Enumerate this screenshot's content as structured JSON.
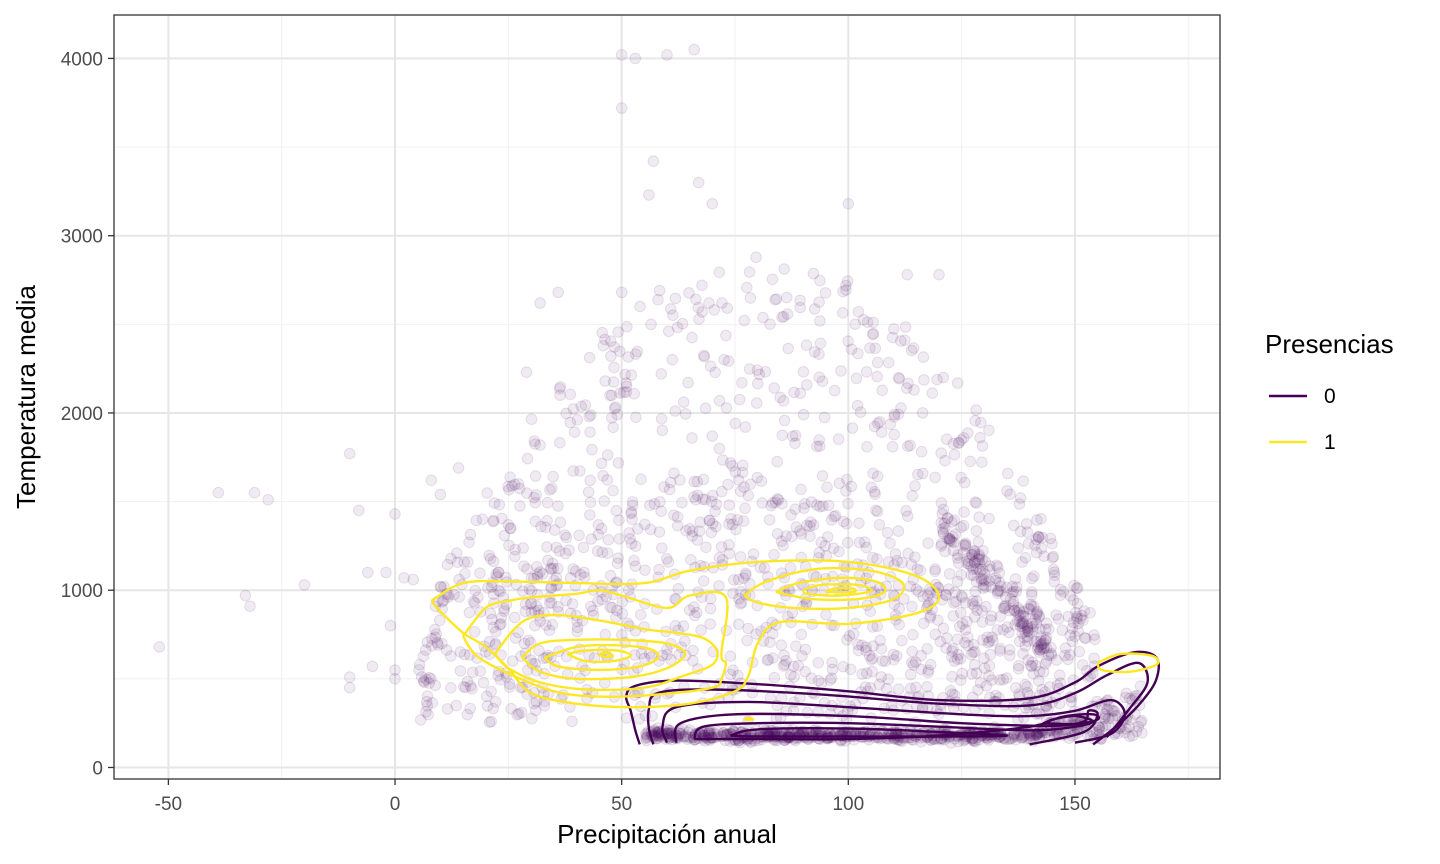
{
  "chart_data": {
    "type": "scatter",
    "xlabel": "Precipitación anual",
    "ylabel": "Temperatura media",
    "xlim": [
      -62,
      182
    ],
    "ylim": [
      -65,
      4245
    ],
    "x_ticks": [
      -50,
      0,
      50,
      100,
      150
    ],
    "y_ticks": [
      0,
      1000,
      2000,
      3000,
      4000
    ],
    "grid": true,
    "legend": {
      "title": "Presencias",
      "position": "right",
      "entries": [
        {
          "label": "0",
          "color": "#440154"
        },
        {
          "label": "1",
          "color": "#FDE725"
        }
      ]
    },
    "series": [
      {
        "name": "0",
        "color": "#440154",
        "point_opacity": 0.08,
        "points_outliers": [
          [
            -39,
            1550
          ],
          [
            -31,
            1550
          ],
          [
            -28,
            1510
          ],
          [
            -20,
            1030
          ],
          [
            -52,
            680
          ],
          [
            -33,
            970
          ],
          [
            -32,
            910
          ],
          [
            -10,
            1770
          ],
          [
            -8,
            1450
          ],
          [
            -6,
            1100
          ],
          [
            -2,
            1100
          ],
          [
            0,
            1430
          ],
          [
            2,
            1070
          ],
          [
            4,
            1060
          ],
          [
            -10,
            510
          ],
          [
            -10,
            450
          ],
          [
            -5,
            570
          ],
          [
            0,
            550
          ],
          [
            0,
            500
          ],
          [
            -1,
            800
          ],
          [
            50,
            4020
          ],
          [
            53,
            4000
          ],
          [
            60,
            4020
          ],
          [
            66,
            4050
          ],
          [
            57,
            3420
          ],
          [
            67,
            3300
          ],
          [
            50,
            3720
          ],
          [
            56,
            3230
          ],
          [
            70,
            3180
          ],
          [
            100,
            3180
          ],
          [
            120,
            2780
          ],
          [
            113,
            2780
          ],
          [
            50,
            2680
          ],
          [
            36,
            2680
          ],
          [
            32,
            2620
          ],
          [
            29,
            2230
          ],
          [
            10,
            1540
          ],
          [
            8,
            1620
          ],
          [
            14,
            1690
          ],
          [
            140,
            760
          ],
          [
            150,
            740
          ],
          [
            135,
            1560
          ],
          [
            138,
            1520
          ]
        ],
        "main_cloud": {
          "x_range": [
            5,
            155
          ],
          "y_range": [
            150,
            3100
          ]
        },
        "dense_band": {
          "x_range": [
            55,
            170
          ],
          "y_range": [
            120,
            700
          ]
        },
        "contours": [
          [
            [
              54,
              130
            ],
            [
              53,
              210
            ],
            [
              52,
              320
            ],
            [
              51,
              400
            ],
            [
              53,
              460
            ],
            [
              62,
              490
            ],
            [
              80,
              470
            ],
            [
              100,
              430
            ],
            [
              120,
              380
            ],
            [
              140,
              390
            ],
            [
              150,
              480
            ],
            [
              155,
              570
            ],
            [
              163,
              650
            ],
            [
              168,
              620
            ],
            [
              168,
              500
            ],
            [
              165,
              380
            ],
            [
              160,
              250
            ],
            [
              154,
              130
            ]
          ],
          [
            [
              57,
              130
            ],
            [
              56,
              220
            ],
            [
              56,
              330
            ],
            [
              58,
              420
            ],
            [
              70,
              440
            ],
            [
              95,
              410
            ],
            [
              120,
              360
            ],
            [
              140,
              350
            ],
            [
              150,
              420
            ],
            [
              157,
              520
            ],
            [
              164,
              590
            ],
            [
              166,
              480
            ],
            [
              162,
              330
            ],
            [
              157,
              170
            ]
          ],
          [
            [
              60,
              140
            ],
            [
              59,
              230
            ],
            [
              62,
              340
            ],
            [
              78,
              370
            ],
            [
              100,
              340
            ],
            [
              125,
              300
            ],
            [
              140,
              290
            ],
            [
              150,
              320
            ],
            [
              158,
              380
            ],
            [
              161,
              300
            ],
            [
              158,
              190
            ],
            [
              150,
              140
            ]
          ],
          [
            [
              62,
              140
            ],
            [
              63,
              250
            ],
            [
              75,
              300
            ],
            [
              100,
              290
            ],
            [
              125,
              250
            ],
            [
              145,
              235
            ],
            [
              152,
              260
            ],
            [
              153,
              320
            ],
            [
              155,
              300
            ],
            [
              152,
              200
            ],
            [
              140,
              130
            ]
          ],
          [
            [
              66,
              160
            ],
            [
              68,
              230
            ],
            [
              80,
              250
            ],
            [
              100,
              250
            ],
            [
              120,
              230
            ],
            [
              140,
              210
            ],
            [
              150,
              230
            ],
            [
              154,
              260
            ],
            [
              150,
              290
            ],
            [
              145,
              270
            ],
            [
              140,
              230
            ],
            [
              120,
              180
            ],
            [
              100,
              160
            ],
            [
              80,
              160
            ],
            [
              66,
              160
            ]
          ],
          [
            [
              74,
              180
            ],
            [
              80,
              215
            ],
            [
              100,
              220
            ],
            [
              120,
              200
            ],
            [
              135,
              180
            ],
            [
              120,
              175
            ],
            [
              100,
              175
            ],
            [
              80,
              175
            ],
            [
              74,
              180
            ]
          ],
          [
            [
              143,
              250
            ],
            [
              148,
              290
            ],
            [
              154,
              300
            ],
            [
              155,
              270
            ],
            [
              150,
              245
            ],
            [
              143,
              250
            ]
          ]
        ]
      },
      {
        "name": "1",
        "color": "#FDE725",
        "contours": [
          [
            [
              8,
              940
            ],
            [
              10,
              880
            ],
            [
              15,
              760
            ],
            [
              20,
              680
            ],
            [
              25,
              560
            ],
            [
              30,
              420
            ],
            [
              40,
              360
            ],
            [
              52,
              340
            ],
            [
              65,
              360
            ],
            [
              75,
              430
            ],
            [
              78,
              520
            ],
            [
              80,
              700
            ],
            [
              85,
              820
            ],
            [
              100,
              810
            ],
            [
              115,
              870
            ],
            [
              120,
              960
            ],
            [
              115,
              1080
            ],
            [
              100,
              1160
            ],
            [
              80,
              1160
            ],
            [
              65,
              1110
            ],
            [
              55,
              1040
            ],
            [
              40,
              1040
            ],
            [
              25,
              1050
            ],
            [
              15,
              1040
            ],
            [
              8,
              940
            ]
          ],
          [
            [
              15,
              740
            ],
            [
              18,
              630
            ],
            [
              25,
              530
            ],
            [
              35,
              430
            ],
            [
              45,
              400
            ],
            [
              57,
              410
            ],
            [
              70,
              450
            ],
            [
              72,
              500
            ],
            [
              73,
              590
            ],
            [
              72,
              640
            ],
            [
              73,
              960
            ],
            [
              65,
              970
            ],
            [
              60,
              900
            ],
            [
              50,
              970
            ],
            [
              45,
              1000
            ],
            [
              40,
              980
            ],
            [
              30,
              960
            ],
            [
              25,
              940
            ],
            [
              20,
              900
            ],
            [
              15,
              740
            ]
          ],
          [
            [
              22,
              640
            ],
            [
              25,
              560
            ],
            [
              32,
              480
            ],
            [
              42,
              440
            ],
            [
              55,
              450
            ],
            [
              64,
              520
            ],
            [
              70,
              580
            ],
            [
              71,
              660
            ],
            [
              68,
              730
            ],
            [
              62,
              760
            ],
            [
              55,
              780
            ],
            [
              45,
              830
            ],
            [
              35,
              860
            ],
            [
              28,
              820
            ],
            [
              22,
              640
            ]
          ],
          [
            [
              28,
              620
            ],
            [
              32,
              540
            ],
            [
              40,
              500
            ],
            [
              52,
              510
            ],
            [
              60,
              560
            ],
            [
              64,
              640
            ],
            [
              60,
              700
            ],
            [
              50,
              720
            ],
            [
              40,
              720
            ],
            [
              32,
              700
            ],
            [
              28,
              620
            ]
          ],
          [
            [
              33,
              620
            ],
            [
              36,
              570
            ],
            [
              45,
              550
            ],
            [
              54,
              570
            ],
            [
              58,
              620
            ],
            [
              56,
              670
            ],
            [
              48,
              690
            ],
            [
              40,
              680
            ],
            [
              33,
              620
            ]
          ],
          [
            [
              38,
              640
            ],
            [
              42,
              600
            ],
            [
              48,
              600
            ],
            [
              52,
              630
            ],
            [
              49,
              660
            ],
            [
              42,
              660
            ],
            [
              38,
              640
            ]
          ],
          [
            [
              45,
              640
            ],
            [
              46,
              625
            ],
            [
              48,
              628
            ],
            [
              47,
              645
            ],
            [
              45,
              640
            ]
          ],
          [
            [
              77,
              970
            ],
            [
              82,
              1050
            ],
            [
              93,
              1120
            ],
            [
              105,
              1110
            ],
            [
              112,
              1040
            ],
            [
              110,
              950
            ],
            [
              100,
              900
            ],
            [
              88,
              900
            ],
            [
              80,
              930
            ],
            [
              77,
              970
            ]
          ],
          [
            [
              84,
              990
            ],
            [
              89,
              1040
            ],
            [
              98,
              1070
            ],
            [
              106,
              1050
            ],
            [
              108,
              990
            ],
            [
              102,
              950
            ],
            [
              92,
              950
            ],
            [
              84,
              990
            ]
          ],
          [
            [
              90,
              1000
            ],
            [
              94,
              1030
            ],
            [
              102,
              1030
            ],
            [
              105,
              995
            ],
            [
              98,
              970
            ],
            [
              91,
              980
            ],
            [
              90,
              1000
            ]
          ],
          [
            [
              95,
              990
            ],
            [
              97,
              1010
            ],
            [
              101,
              1010
            ],
            [
              101,
              990
            ],
            [
              95,
              990
            ]
          ],
          [
            [
              155,
              590
            ],
            [
              160,
              640
            ],
            [
              167,
              630
            ],
            [
              168,
              580
            ],
            [
              162,
              540
            ],
            [
              156,
              550
            ],
            [
              155,
              590
            ]
          ],
          [
            [
              77,
              270
            ],
            [
              78,
              280
            ],
            [
              79,
              270
            ],
            [
              77,
              270
            ]
          ]
        ]
      }
    ]
  }
}
